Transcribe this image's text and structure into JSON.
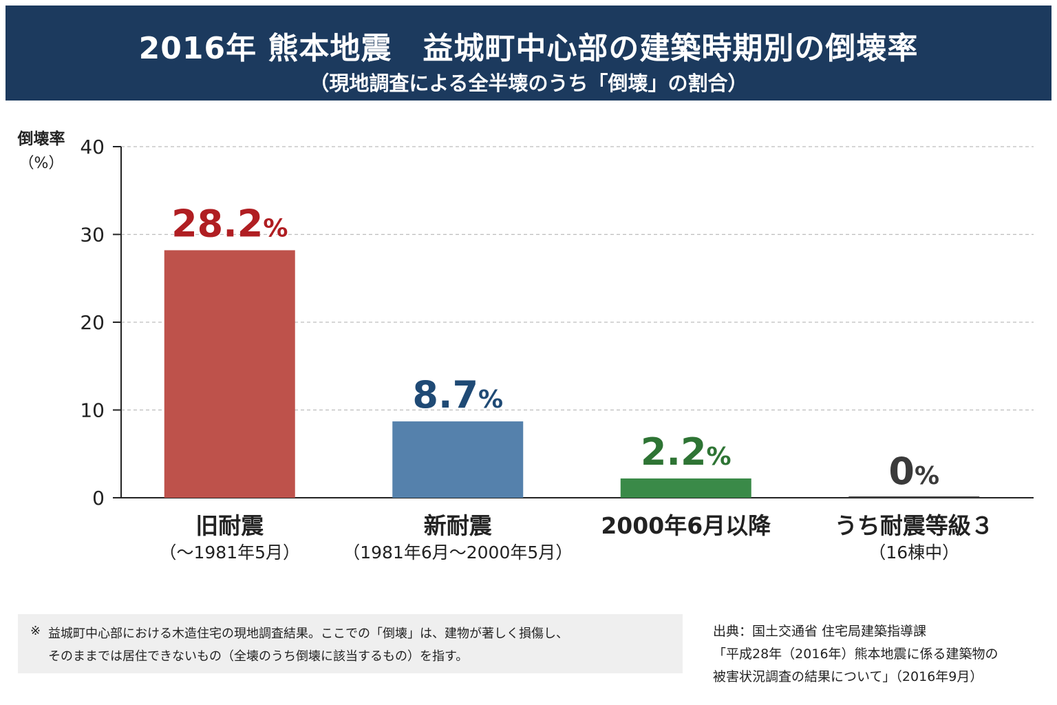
{
  "header": {
    "title": "2016年 熊本地震　益城町中心部の建築時期別の倒壊率",
    "subtitle": "（現地調査による全半壊のうち「倒壊」の割合）"
  },
  "chart_data": {
    "type": "bar",
    "title": "2016年 熊本地震　益城町中心部の建築時期別の倒壊率",
    "subtitle": "（現地調査による全半壊のうち「倒壊」の割合）",
    "ylabel": "倒壊率",
    "ylabel_unit": "（%）",
    "ylim": [
      0,
      40
    ],
    "yticks": [
      0,
      10,
      20,
      30,
      40
    ],
    "grid": true,
    "categories": [
      {
        "label": "旧耐震",
        "sublabel": "（～1981年5月）"
      },
      {
        "label": "新耐震",
        "sublabel": "（1981年6月～2000年5月）"
      },
      {
        "label": "2000年6月以降",
        "sublabel": ""
      },
      {
        "label": "うち耐震等級３",
        "sublabel": "（16棟中）"
      }
    ],
    "values": [
      28.2,
      8.7,
      2.2,
      0
    ],
    "value_labels": [
      "28.2",
      "8.7",
      "2.2",
      "0"
    ],
    "value_unit": "%",
    "bar_colors": [
      "#be524b",
      "#5581ac",
      "#3a8a48",
      "#444444"
    ],
    "label_colors": [
      "#b01e22",
      "#1f4a75",
      "#2e7434",
      "#3a3a3a"
    ]
  },
  "footnote": {
    "mark": "※",
    "line1": "益城町中心部における木造住宅の現地調査結果。ここでの「倒壊」は、建物が著しく損傷し、",
    "line2": "そのままでは居住できないもの（全壊のうち倒壊に該当するもの）を指す。"
  },
  "source": {
    "line1": "出典：国土交通省 住宅局建築指導課",
    "line2": "「平成28年（2016年）熊本地震に係る建築物の",
    "line3": "被害状況調査の結果について」（2016年9月）"
  }
}
